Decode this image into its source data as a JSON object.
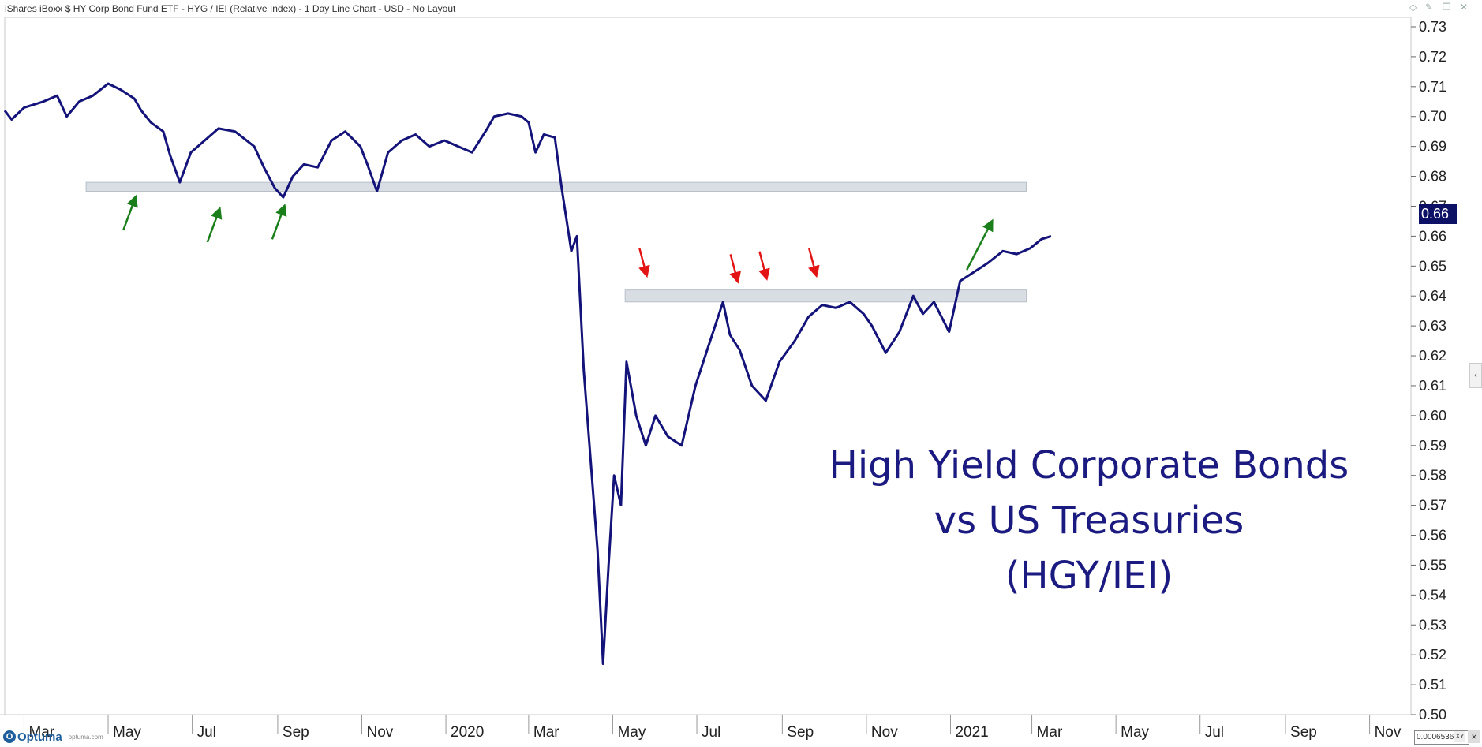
{
  "header": {
    "title": "iShares iBoxx $ HY Corp Bond Fund ETF - HYG / IEI (Relative Index) - 1 Day Line Chart - USD - No Layout"
  },
  "window_controls": [
    "diamond-icon",
    "pin-icon",
    "restore-icon",
    "close-icon"
  ],
  "annotation_lines": [
    "High Yield Corporate Bonds",
    "vs US Treasuries",
    "(HGY/IEI)"
  ],
  "last_price_label": "0.66",
  "footer": {
    "logo_text": "Optuma",
    "logo_site": "optuma.com",
    "cursor_readout": "0.0006536",
    "xy_label": "XY",
    "close_label": "×"
  },
  "colors": {
    "line": "#13137a",
    "support_band": "#d9dee4",
    "green_arrow": "#1a7f1a",
    "red_arrow": "#e31414",
    "price_tag": "#0d1166"
  },
  "chart_data": {
    "type": "line",
    "title": "",
    "xlabel": "",
    "ylabel": "",
    "ylim": [
      0.5,
      0.73
    ],
    "y_ticks": [
      "0.73",
      "0.72",
      "0.71",
      "0.70",
      "0.69",
      "0.68",
      "0.67",
      "0.66",
      "0.65",
      "0.64",
      "0.63",
      "0.62",
      "0.61",
      "0.60",
      "0.59",
      "0.58",
      "0.57",
      "0.56",
      "0.55",
      "0.54",
      "0.53",
      "0.52",
      "0.51",
      "0.50"
    ],
    "x_tick_labels": [
      "Mar",
      "May",
      "Jul",
      "Sep",
      "Nov",
      "2020",
      "Mar",
      "May",
      "Jul",
      "Sep",
      "Nov",
      "2021",
      "Mar",
      "May",
      "Jul",
      "Sep",
      "Nov"
    ],
    "x_range": [
      "2019-02-15",
      "2021-12-01"
    ],
    "x_ticks": [
      "2019-03-01",
      "2019-05-01",
      "2019-07-01",
      "2019-09-01",
      "2019-11-01",
      "2020-01-01",
      "2020-03-01",
      "2020-05-01",
      "2020-07-01",
      "2020-09-01",
      "2020-11-01",
      "2021-01-01",
      "2021-03-01",
      "2021-05-01",
      "2021-07-01",
      "2021-09-01",
      "2021-11-01"
    ],
    "series": [
      {
        "color": "#13137a",
        "points": [
          [
            "2019-02-15",
            0.702
          ],
          [
            "2019-02-20",
            0.699
          ],
          [
            "2019-03-01",
            0.703
          ],
          [
            "2019-03-15",
            0.705
          ],
          [
            "2019-03-25",
            0.707
          ],
          [
            "2019-04-01",
            0.7
          ],
          [
            "2019-04-10",
            0.705
          ],
          [
            "2019-04-20",
            0.707
          ],
          [
            "2019-05-01",
            0.711
          ],
          [
            "2019-05-10",
            0.709
          ],
          [
            "2019-05-20",
            0.706
          ],
          [
            "2019-05-25",
            0.702
          ],
          [
            "2019-06-01",
            0.698
          ],
          [
            "2019-06-10",
            0.695
          ],
          [
            "2019-06-15",
            0.687
          ],
          [
            "2019-06-22",
            0.678
          ],
          [
            "2019-06-30",
            0.688
          ],
          [
            "2019-07-10",
            0.692
          ],
          [
            "2019-07-20",
            0.696
          ],
          [
            "2019-08-01",
            0.695
          ],
          [
            "2019-08-15",
            0.69
          ],
          [
            "2019-08-22",
            0.683
          ],
          [
            "2019-08-30",
            0.676
          ],
          [
            "2019-09-05",
            0.673
          ],
          [
            "2019-09-12",
            0.68
          ],
          [
            "2019-09-20",
            0.684
          ],
          [
            "2019-09-30",
            0.683
          ],
          [
            "2019-10-10",
            0.692
          ],
          [
            "2019-10-20",
            0.695
          ],
          [
            "2019-10-31",
            0.69
          ],
          [
            "2019-11-05",
            0.684
          ],
          [
            "2019-11-12",
            0.675
          ],
          [
            "2019-11-20",
            0.688
          ],
          [
            "2019-11-30",
            0.692
          ],
          [
            "2019-12-10",
            0.694
          ],
          [
            "2019-12-20",
            0.69
          ],
          [
            "2019-12-31",
            0.692
          ],
          [
            "2020-01-10",
            0.69
          ],
          [
            "2020-01-20",
            0.688
          ],
          [
            "2020-01-31",
            0.696
          ],
          [
            "2020-02-05",
            0.7
          ],
          [
            "2020-02-15",
            0.701
          ],
          [
            "2020-02-25",
            0.7
          ],
          [
            "2020-03-01",
            0.698
          ],
          [
            "2020-03-06",
            0.688
          ],
          [
            "2020-03-12",
            0.694
          ],
          [
            "2020-03-20",
            0.693
          ],
          [
            "2020-03-25",
            0.676
          ],
          [
            "2020-04-01",
            0.655
          ],
          [
            "2020-04-05",
            0.66
          ],
          [
            "2020-04-10",
            0.615
          ],
          [
            "2020-04-15",
            0.585
          ],
          [
            "2020-04-20",
            0.555
          ],
          [
            "2020-04-24",
            0.517
          ],
          [
            "2020-04-28",
            0.55
          ],
          [
            "2020-05-02",
            0.58
          ],
          [
            "2020-05-07",
            0.57
          ],
          [
            "2020-05-11",
            0.618
          ],
          [
            "2020-05-18",
            0.6
          ],
          [
            "2020-05-25",
            0.59
          ],
          [
            "2020-06-01",
            0.6
          ],
          [
            "2020-06-10",
            0.593
          ],
          [
            "2020-06-20",
            0.59
          ],
          [
            "2020-06-30",
            0.61
          ],
          [
            "2020-07-10",
            0.624
          ],
          [
            "2020-07-20",
            0.638
          ],
          [
            "2020-07-25",
            0.627
          ],
          [
            "2020-08-01",
            0.622
          ],
          [
            "2020-08-10",
            0.61
          ],
          [
            "2020-08-20",
            0.605
          ],
          [
            "2020-08-30",
            0.618
          ],
          [
            "2020-09-10",
            0.625
          ],
          [
            "2020-09-20",
            0.633
          ],
          [
            "2020-09-30",
            0.637
          ],
          [
            "2020-10-10",
            0.636
          ],
          [
            "2020-10-20",
            0.638
          ],
          [
            "2020-10-30",
            0.634
          ],
          [
            "2020-11-05",
            0.63
          ],
          [
            "2020-11-15",
            0.621
          ],
          [
            "2020-11-25",
            0.628
          ],
          [
            "2020-12-05",
            0.64
          ],
          [
            "2020-12-12",
            0.634
          ],
          [
            "2020-12-20",
            0.638
          ],
          [
            "2020-12-31",
            0.628
          ],
          [
            "2021-01-08",
            0.645
          ],
          [
            "2021-01-18",
            0.648
          ],
          [
            "2021-01-28",
            0.651
          ],
          [
            "2021-02-08",
            0.655
          ],
          [
            "2021-02-18",
            0.654
          ],
          [
            "2021-02-28",
            0.656
          ],
          [
            "2021-03-08",
            0.659
          ],
          [
            "2021-03-15",
            0.66
          ]
        ]
      }
    ],
    "bands": [
      {
        "x0": "2019-04-15",
        "x1": "2021-02-25",
        "y0": 0.675,
        "y1": 0.678
      },
      {
        "x0": "2020-05-10",
        "x1": "2021-02-25",
        "y0": 0.638,
        "y1": 0.642
      }
    ],
    "green_arrows": [
      {
        "x": "2019-05-20",
        "y": 0.672
      },
      {
        "x": "2019-07-20",
        "y": 0.668
      },
      {
        "x": "2019-09-05",
        "y": 0.669
      },
      {
        "x": "2021-01-30",
        "y": 0.664
      }
    ],
    "red_arrows": [
      {
        "x": "2020-05-25",
        "y": 0.648
      },
      {
        "x": "2020-07-30",
        "y": 0.646
      },
      {
        "x": "2020-08-20",
        "y": 0.647
      },
      {
        "x": "2020-09-25",
        "y": 0.648
      }
    ],
    "grid": false,
    "legend": "none"
  }
}
